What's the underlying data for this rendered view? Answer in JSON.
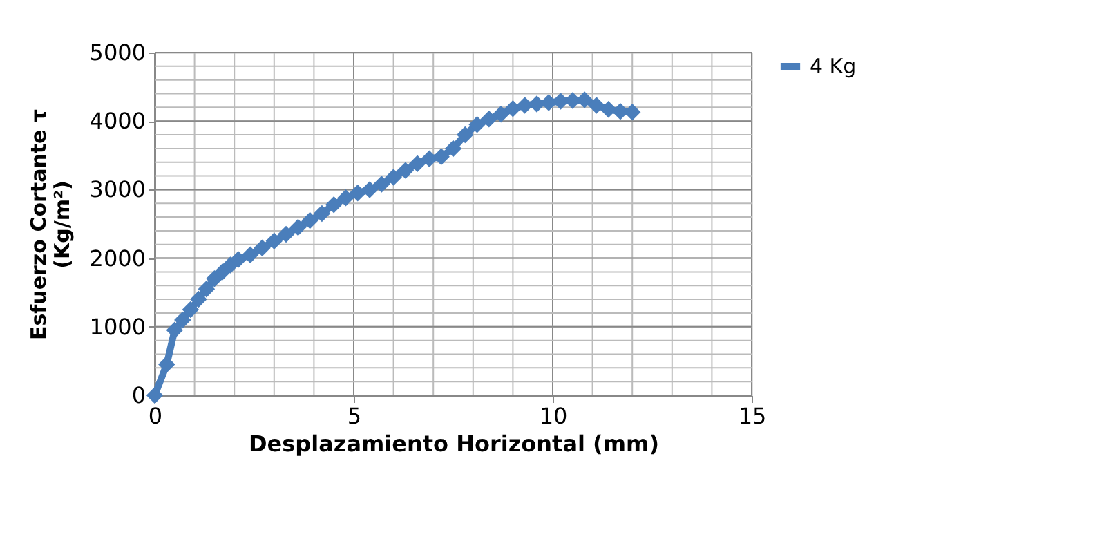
{
  "chart_data": {
    "type": "line",
    "xlabel": "Desplazamiento Horizontal (mm)",
    "ylabel": "Esfuerzo Cortante τ\n(Kg/m²)",
    "xlim": [
      0,
      15
    ],
    "xticks": [
      0,
      5,
      10,
      15
    ],
    "ylim": [
      0,
      5000
    ],
    "yticks": [
      0,
      1000,
      2000,
      3000,
      4000,
      5000
    ],
    "grid": true,
    "legend": "right",
    "marker": "diamond",
    "line_style": "solid",
    "series": [
      {
        "name": "4 Kg",
        "color": "#4a7ebb",
        "x": [
          0,
          0.3,
          0.5,
          0.7,
          0.9,
          1.1,
          1.3,
          1.5,
          1.7,
          1.9,
          2.1,
          2.4,
          2.7,
          3.0,
          3.3,
          3.6,
          3.9,
          4.2,
          4.5,
          4.8,
          5.1,
          5.4,
          5.7,
          6.0,
          6.3,
          6.6,
          6.9,
          7.2,
          7.5,
          7.8,
          8.1,
          8.4,
          8.7,
          9.0,
          9.3,
          9.6,
          9.9,
          10.2,
          10.5,
          10.8,
          11.1,
          11.4,
          11.7,
          12.0
        ],
        "values": [
          0,
          450,
          950,
          1100,
          1250,
          1400,
          1550,
          1700,
          1800,
          1900,
          1980,
          2050,
          2150,
          2250,
          2350,
          2450,
          2550,
          2650,
          2780,
          2880,
          2950,
          3000,
          3080,
          3180,
          3280,
          3380,
          3450,
          3480,
          3600,
          3800,
          3950,
          4030,
          4100,
          4180,
          4230,
          4250,
          4270,
          4290,
          4300,
          4310,
          4230,
          4170,
          4140,
          4130
        ]
      }
    ]
  }
}
